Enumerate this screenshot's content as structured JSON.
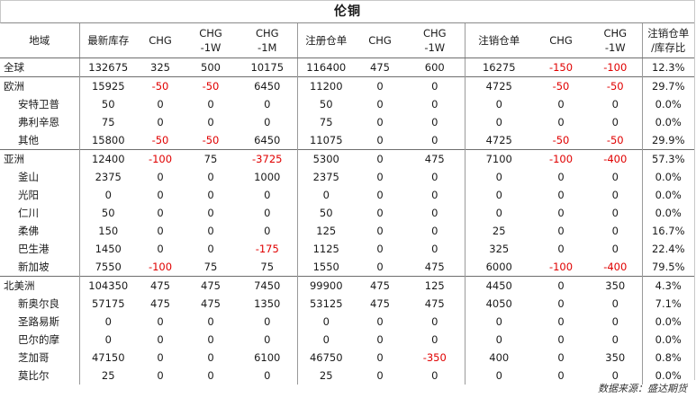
{
  "title": "伦铜",
  "headers": {
    "region": "地域",
    "stock": "最新库存",
    "chg": "CHG",
    "chg_1w_a": "CHG",
    "chg_1w_b": "-1W",
    "chg_1m_a": "CHG",
    "chg_1m_b": "-1M",
    "reg_warrant": "注册仓单",
    "reg_chg": "CHG",
    "reg_chg_1w_a": "CHG",
    "reg_chg_1w_b": "-1W",
    "cancel_warrant": "注销仓单",
    "cancel_chg": "CHG",
    "cancel_chg_1w_a": "CHG",
    "cancel_chg_1w_b": "-1W",
    "ratio_a": "注销仓单",
    "ratio_b": "/库存比"
  },
  "rows": [
    {
      "name": "全球",
      "kind": "region",
      "v": [
        "132675",
        "325",
        "500",
        "10175",
        "116400",
        "475",
        "600",
        "16275",
        "-150",
        "-100",
        "12.3%"
      ]
    },
    {
      "name": "欧洲",
      "kind": "region",
      "v": [
        "15925",
        "-50",
        "-50",
        "6450",
        "11200",
        "0",
        "0",
        "4725",
        "-50",
        "-50",
        "29.7%"
      ]
    },
    {
      "name": "安特卫普",
      "kind": "sub",
      "v": [
        "50",
        "0",
        "0",
        "0",
        "50",
        "0",
        "0",
        "0",
        "0",
        "0",
        "0.0%"
      ]
    },
    {
      "name": "弗利辛恩",
      "kind": "sub",
      "v": [
        "75",
        "0",
        "0",
        "0",
        "75",
        "0",
        "0",
        "0",
        "0",
        "0",
        "0.0%"
      ]
    },
    {
      "name": "其他",
      "kind": "sub",
      "v": [
        "15800",
        "-50",
        "-50",
        "6450",
        "11075",
        "0",
        "0",
        "4725",
        "-50",
        "-50",
        "29.9%"
      ]
    },
    {
      "name": "亚洲",
      "kind": "region",
      "v": [
        "12400",
        "-100",
        "75",
        "-3725",
        "5300",
        "0",
        "475",
        "7100",
        "-100",
        "-400",
        "57.3%"
      ]
    },
    {
      "name": "釜山",
      "kind": "sub",
      "v": [
        "2375",
        "0",
        "0",
        "1000",
        "2375",
        "0",
        "0",
        "0",
        "0",
        "0",
        "0.0%"
      ]
    },
    {
      "name": "光阳",
      "kind": "sub",
      "v": [
        "0",
        "0",
        "0",
        "0",
        "0",
        "0",
        "0",
        "0",
        "0",
        "0",
        "0.0%"
      ]
    },
    {
      "name": "仁川",
      "kind": "sub",
      "v": [
        "50",
        "0",
        "0",
        "0",
        "50",
        "0",
        "0",
        "0",
        "0",
        "0",
        "0.0%"
      ]
    },
    {
      "name": "柔佛",
      "kind": "sub",
      "v": [
        "150",
        "0",
        "0",
        "0",
        "125",
        "0",
        "0",
        "25",
        "0",
        "0",
        "16.7%"
      ]
    },
    {
      "name": "巴生港",
      "kind": "sub",
      "v": [
        "1450",
        "0",
        "0",
        "-175",
        "1125",
        "0",
        "0",
        "325",
        "0",
        "0",
        "22.4%"
      ]
    },
    {
      "name": "新加坡",
      "kind": "sub",
      "v": [
        "7550",
        "-100",
        "75",
        "75",
        "1550",
        "0",
        "475",
        "6000",
        "-100",
        "-400",
        "79.5%"
      ]
    },
    {
      "name": "北美洲",
      "kind": "region",
      "v": [
        "104350",
        "475",
        "475",
        "7450",
        "99900",
        "475",
        "125",
        "4450",
        "0",
        "350",
        "4.3%"
      ]
    },
    {
      "name": "新奥尔良",
      "kind": "sub",
      "v": [
        "57175",
        "475",
        "475",
        "1350",
        "53125",
        "475",
        "475",
        "4050",
        "0",
        "0",
        "7.1%"
      ]
    },
    {
      "name": "圣路易斯",
      "kind": "sub",
      "v": [
        "0",
        "0",
        "0",
        "0",
        "0",
        "0",
        "0",
        "0",
        "0",
        "0",
        "0.0%"
      ]
    },
    {
      "name": "巴尔的摩",
      "kind": "sub",
      "v": [
        "0",
        "0",
        "0",
        "0",
        "0",
        "0",
        "0",
        "0",
        "0",
        "0",
        "0.0%"
      ]
    },
    {
      "name": "芝加哥",
      "kind": "sub",
      "v": [
        "47150",
        "0",
        "0",
        "6100",
        "46750",
        "0",
        "-350",
        "400",
        "0",
        "350",
        "0.8%"
      ]
    },
    {
      "name": "莫比尔",
      "kind": "sub",
      "v": [
        "25",
        "0",
        "0",
        "0",
        "25",
        "0",
        "0",
        "0",
        "0",
        "0",
        "0.0%"
      ]
    }
  ],
  "source": "数据来源：盛达期货",
  "colors": {
    "negative": "#e00000",
    "text": "#1a1a1a",
    "border": "#6e6e6e"
  }
}
